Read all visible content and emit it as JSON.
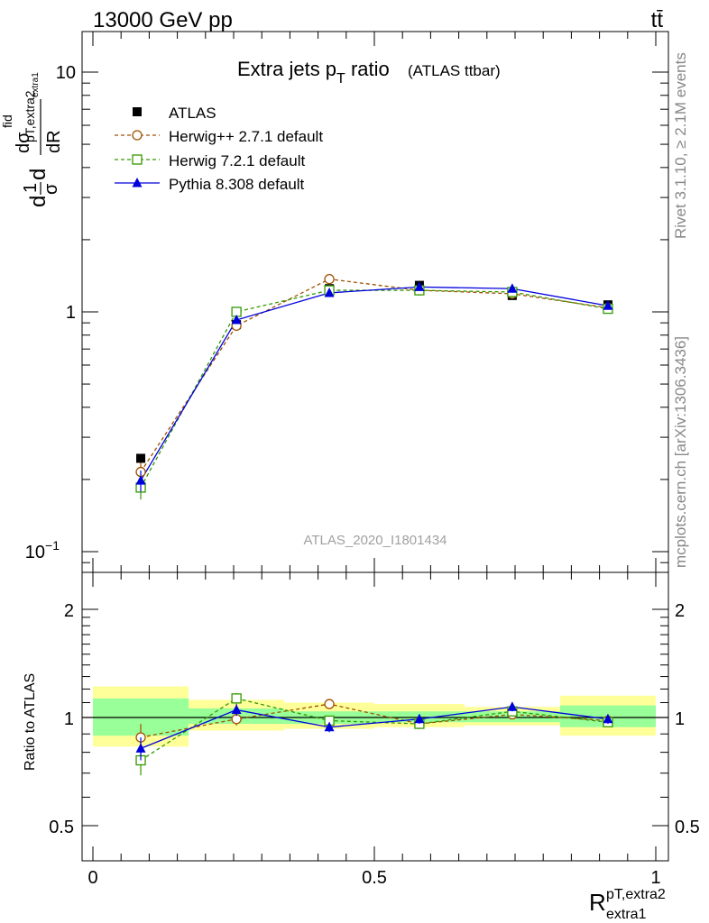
{
  "header": {
    "left": "13000 GeV pp",
    "right": "tt̄"
  },
  "side_labels": {
    "rivet": "Rivet 3.1.10, ≥ 2.1M events",
    "mcplots": "mcplots.cern.ch [arXiv:1306.3436]"
  },
  "colors": {
    "atlas": "#000000",
    "herwigpp": "#a05000",
    "herwig7": "#339900",
    "pythia": "#0000dd",
    "band_inner": "#99ff99",
    "band_outer": "#ffff99"
  },
  "chart_data": {
    "type": "line",
    "title": "Extra jets p",
    "title_sub": "T",
    "title_tail": " ratio",
    "title_small": "(ATLAS ttbar)",
    "watermark": "ATLAS_2020_I1801434",
    "ylabel_main": "dσ/dR",
    "ylabel_main_parts": {
      "p1": "d",
      "frac1_num": "1",
      "frac1_den": "σ",
      "p2": "d",
      "sup": "fid",
      "sub": "pT,extra2",
      "subsub": "extra1",
      "frac2_num": "dσ",
      "frac2_den": "dR"
    },
    "ylabel_ratio": "Ratio to ATLAS",
    "xlabel": {
      "base": "R",
      "sup": "pT,extra2",
      "sub": "extra1"
    },
    "xlim": [
      0,
      1
    ],
    "ylim_main": [
      0.085,
      15
    ],
    "ylim_ratio": [
      0.42,
      2.35
    ],
    "y_scale": "log",
    "x_ticks": [
      "0",
      "0.5",
      "1"
    ],
    "x_tick_values": [
      0,
      0.5,
      1
    ],
    "y_ticks_main": {
      "values": [
        0.1,
        1,
        10
      ],
      "labels": [
        "10",
        "1",
        "10"
      ],
      "superscripts": [
        "−1",
        "",
        ""
      ]
    },
    "y_ticks_ratio": {
      "values": [
        0.5,
        1,
        2
      ],
      "labels": [
        "0.5",
        "1",
        "2"
      ]
    },
    "x_bin_edges": [
      0,
      0.17,
      0.34,
      0.5,
      0.66,
      0.83,
      1
    ],
    "x": [
      0.085,
      0.255,
      0.42,
      0.58,
      0.745,
      0.915
    ],
    "legend": {
      "placement": "top-left",
      "entries": [
        "ATLAS",
        "Herwig++ 2.7.1 default",
        "Herwig 7.2.1 default",
        "Pythia 8.308 default"
      ]
    },
    "series": [
      {
        "name": "ATLAS",
        "values": [
          0.245,
          0.885,
          1.25,
          1.29,
          1.17,
          1.07
        ]
      },
      {
        "name": "Herwig++ 2.7.1 default",
        "values": [
          0.215,
          0.875,
          1.37,
          1.23,
          1.19,
          1.04
        ],
        "errors": [
          0.02,
          0.02,
          0.03,
          0.03,
          0.03,
          0.02
        ],
        "ratio": [
          0.88,
          0.99,
          1.09,
          0.96,
          1.02,
          0.98
        ],
        "ratio_errors": [
          0.08,
          0.04,
          0.03,
          0.03,
          0.03,
          0.03
        ]
      },
      {
        "name": "Herwig 7.2.1 default",
        "values": [
          0.185,
          1.0,
          1.23,
          1.23,
          1.21,
          1.03
        ],
        "errors": [
          0.02,
          0.02,
          0.03,
          0.03,
          0.03,
          0.02
        ],
        "ratio": [
          0.76,
          1.13,
          0.98,
          0.96,
          1.04,
          0.97
        ],
        "ratio_errors": [
          0.07,
          0.04,
          0.03,
          0.03,
          0.03,
          0.03
        ]
      },
      {
        "name": "Pythia 8.308 default",
        "values": [
          0.198,
          0.925,
          1.2,
          1.27,
          1.25,
          1.06
        ],
        "errors": [
          0.02,
          0.02,
          0.03,
          0.03,
          0.03,
          0.02
        ],
        "ratio": [
          0.82,
          1.05,
          0.94,
          0.99,
          1.07,
          0.99
        ],
        "ratio_errors": [
          0.06,
          0.04,
          0.03,
          0.03,
          0.03,
          0.03
        ]
      }
    ],
    "ratio_bands": {
      "inner": [
        [
          0.89,
          1.13
        ],
        [
          0.96,
          1.06
        ],
        [
          0.96,
          1.04
        ],
        [
          0.97,
          1.04
        ],
        [
          0.97,
          1.04
        ],
        [
          0.94,
          1.08
        ]
      ],
      "outer": [
        [
          0.83,
          1.22
        ],
        [
          0.92,
          1.12
        ],
        [
          0.93,
          1.1
        ],
        [
          0.94,
          1.09
        ],
        [
          0.95,
          1.07
        ],
        [
          0.89,
          1.15
        ]
      ]
    }
  }
}
